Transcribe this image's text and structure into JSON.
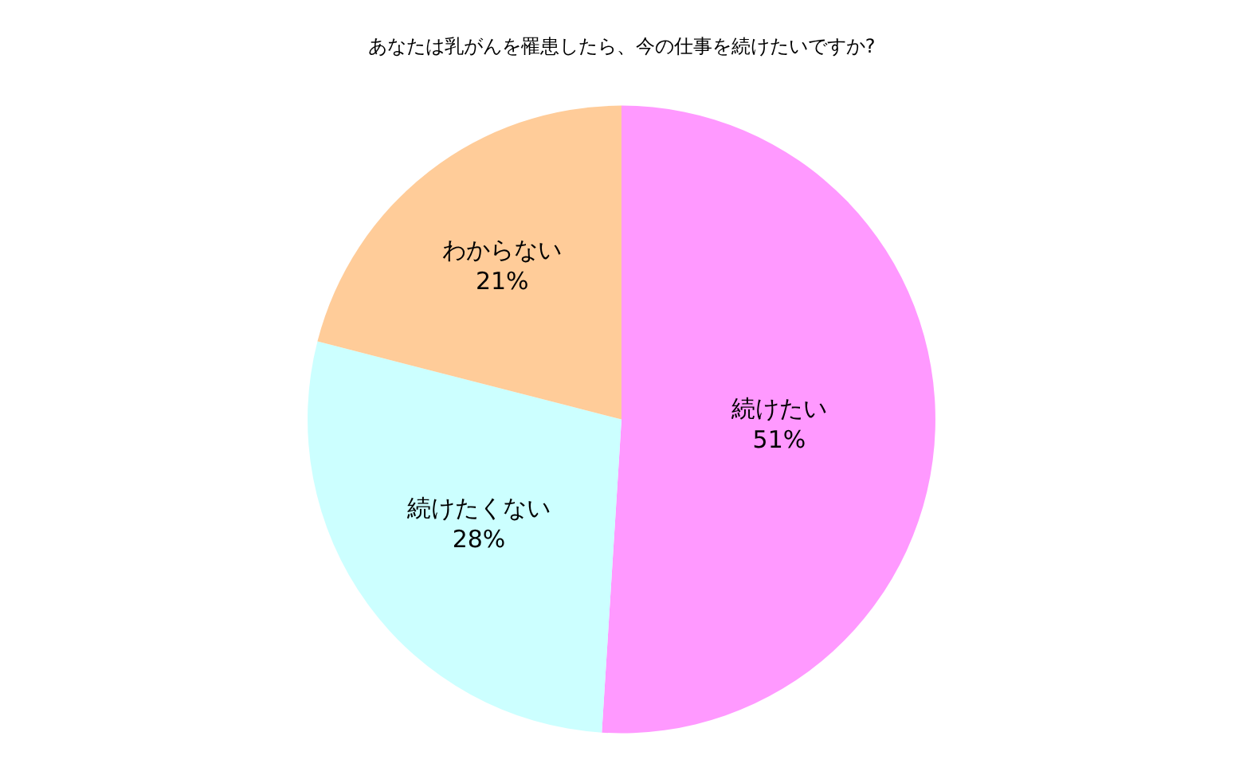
{
  "chart_data": {
    "type": "pie",
    "title": "あなたは乳がんを罹患したら、今の仕事を続けたいですか?",
    "categories": [
      "続けたい",
      "続けたくない",
      "わからない"
    ],
    "values": [
      51,
      28,
      21
    ],
    "colors": [
      "#ff99ff",
      "#ccffff",
      "#ffcc99"
    ],
    "value_labels": [
      "51%",
      "28%",
      "21%"
    ],
    "legend": false
  }
}
